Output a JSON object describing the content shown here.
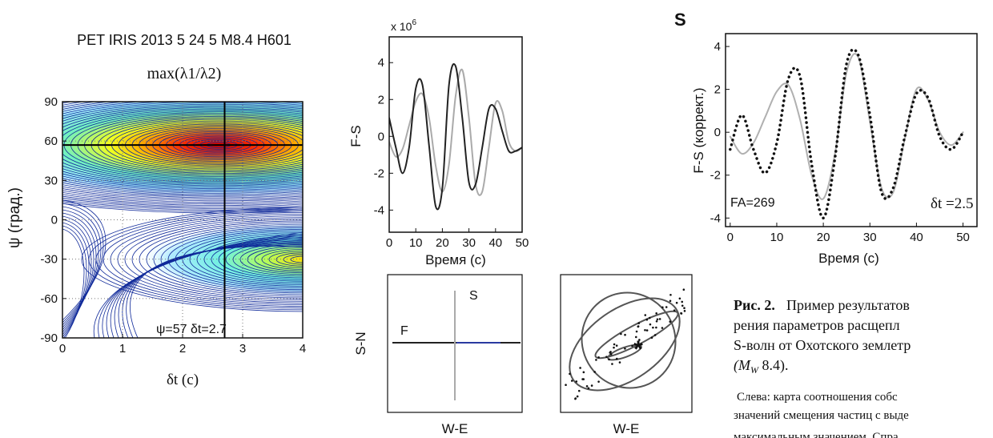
{
  "chart_data": [
    {
      "type": "contour",
      "title": "PET IRIS 2013 5  24 5  M8.4 H601",
      "subtitle": "max(λ1/λ2)",
      "xlabel": "δt (с)",
      "ylabel": "ψ (град.)",
      "xlim": [
        0,
        4
      ],
      "ylim": [
        -90,
        90
      ],
      "xticks": [
        0,
        1,
        2,
        3,
        4
      ],
      "yticks": [
        90,
        60,
        30,
        0,
        -30,
        -60,
        -90
      ],
      "annotation": "ψ=57   δt=2.7",
      "marker": {
        "x": 2.7,
        "y": 57
      },
      "grid": true
    },
    {
      "type": "line",
      "ylabel": "F-S",
      "xlabel": "Время (с)",
      "multiplier": {
        "base": "x 10",
        "exponent": "6"
      },
      "xlim": [
        0,
        50
      ],
      "ylim": [
        -5.2,
        5.4
      ],
      "xticks": [
        0,
        10,
        20,
        30,
        40,
        50
      ],
      "yticks": [
        -4,
        -2,
        0,
        2,
        4
      ],
      "x": [
        0,
        2.5,
        5,
        7.5,
        10,
        12.5,
        15,
        17.5,
        20,
        22.5,
        25,
        27.5,
        30,
        32.5,
        35,
        37.5,
        40,
        42.5,
        45,
        47.5,
        50
      ],
      "series": [
        {
          "color": "#aaaaaa",
          "dash": "solid",
          "values": [
            -0.3,
            -1.1,
            -0.7,
            0.6,
            1.9,
            2.3,
            1.0,
            -1.6,
            -3.0,
            -1.5,
            2.2,
            3.6,
            1.0,
            -2.6,
            -3.0,
            -0.6,
            1.8,
            1.4,
            -0.3,
            -0.8,
            -0.6
          ]
        },
        {
          "color": "#222222",
          "dash": "solid",
          "values": [
            1.0,
            -0.6,
            -2.0,
            -0.6,
            2.6,
            2.8,
            -0.5,
            -3.8,
            -2.8,
            2.8,
            3.8,
            1.0,
            -2.5,
            -2.6,
            -0.6,
            1.5,
            1.5,
            0.3,
            -0.8,
            -0.8,
            -0.6
          ]
        }
      ]
    },
    {
      "type": "line",
      "title": "S",
      "ylabel": "F-S (коррект.)",
      "xlabel": "Время (с)",
      "annotations": [
        "FA=269",
        "δt =2.5"
      ],
      "xlim": [
        -1,
        53
      ],
      "ylim": [
        -4.4,
        4.6
      ],
      "xticks": [
        0,
        10,
        20,
        30,
        40,
        50
      ],
      "yticks": [
        -4,
        -2,
        0,
        2,
        4
      ],
      "x": [
        0,
        2.5,
        5,
        7.5,
        10,
        12.5,
        15,
        17.5,
        20,
        22.5,
        25,
        27.5,
        30,
        32.5,
        35,
        37.5,
        40,
        42.5,
        45,
        47.5,
        50
      ],
      "series": [
        {
          "color": "#b0b0b0",
          "dash": "solid",
          "values": [
            -0.2,
            -1.0,
            -0.5,
            0.7,
            1.9,
            2.2,
            0.6,
            -2.0,
            -3.1,
            -1.0,
            2.8,
            3.5,
            0.5,
            -2.6,
            -2.8,
            -0.3,
            2.0,
            1.5,
            0,
            -0.6,
            0
          ]
        },
        {
          "color": "#111111",
          "dash": "dotted",
          "values": [
            -0.8,
            0.8,
            -0.8,
            -1.9,
            -0.5,
            2.5,
            2.6,
            -1.5,
            -4.0,
            -1.2,
            3.2,
            3.6,
            0.8,
            -2.8,
            -2.6,
            -0.2,
            1.8,
            1.6,
            -0.2,
            -0.8,
            0
          ]
        }
      ]
    },
    {
      "type": "particle-motion",
      "xlabel": "W-E",
      "ylabel": "S-N",
      "labels": [
        "F",
        "S"
      ]
    },
    {
      "type": "particle-ellipse",
      "xlabel": "W-E"
    }
  ],
  "caption": {
    "label": "Рис. 2.",
    "lines": [
      "Пример результатов",
      "рения параметров расщепл",
      "S-волн от  Охотского землетр"
    ],
    "magnitude": {
      "open": "(M",
      "sub": "W",
      "close": " 8.4)."
    },
    "note": [
      "Слева: карта соотношения собс",
      "значений смещения частиц с выде",
      "максимальным значением. Спра"
    ]
  }
}
